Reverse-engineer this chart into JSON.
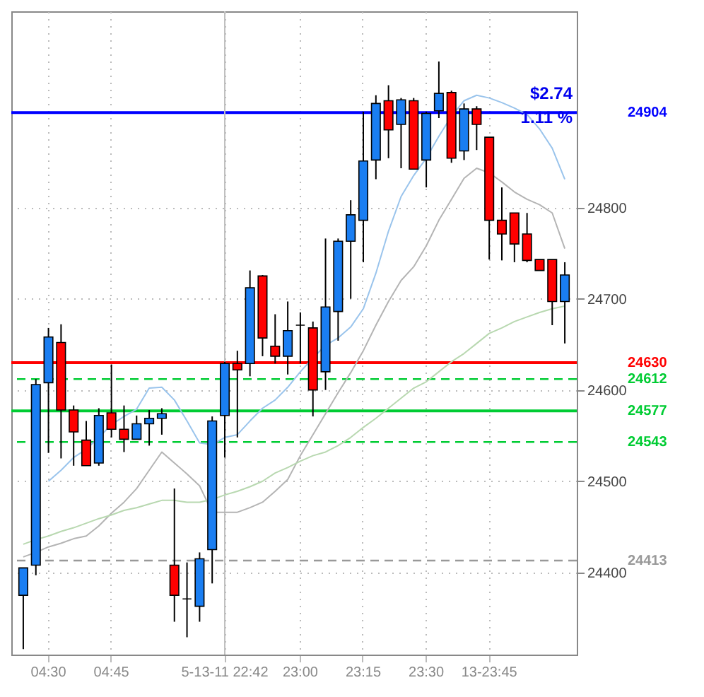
{
  "chart_data": {
    "type": "candlestick",
    "categories": [
      null,
      null,
      "04:30",
      null,
      null,
      null,
      null,
      "04:45",
      null,
      null,
      null,
      null,
      null,
      null,
      null,
      null,
      "5-13-11 22:42",
      null,
      null,
      null,
      null,
      null,
      "23:00",
      null,
      null,
      null,
      null,
      "23:15",
      null,
      null,
      null,
      null,
      "23:30",
      null,
      null,
      null,
      null,
      "13-23:45",
      null,
      null,
      null,
      null,
      null,
      null
    ],
    "ohlc": [
      [
        24375,
        24405,
        24316,
        24405
      ],
      [
        24408,
        24612,
        24397,
        24606
      ],
      [
        24608,
        24668,
        24531,
        24658
      ],
      [
        24652,
        24672,
        24525,
        24578
      ],
      [
        24578,
        24583,
        24517,
        24554
      ],
      [
        24545,
        24566,
        24517,
        24517
      ],
      [
        24520,
        24580,
        24517,
        24572
      ],
      [
        24575,
        24628,
        24548,
        24557
      ],
      [
        24557,
        24583,
        24532,
        24546
      ],
      [
        24546,
        24572,
        24546,
        24563
      ],
      [
        24563,
        24578,
        24539,
        24569
      ],
      [
        24569,
        24580,
        24551,
        24574
      ],
      [
        24408,
        24492,
        24346,
        24375
      ],
      [
        24371,
        24411,
        24329,
        24371
      ],
      [
        24363,
        24422,
        24346,
        24415
      ],
      [
        24425,
        24571,
        24388,
        24566
      ],
      [
        24572,
        24631,
        24526,
        24629
      ],
      [
        24629,
        24643,
        24548,
        24622
      ],
      [
        24629,
        24731,
        24615,
        24712
      ],
      [
        24725,
        24726,
        24637,
        24657
      ],
      [
        24648,
        24683,
        24629,
        24637
      ],
      [
        24637,
        24697,
        24617,
        24665
      ],
      [
        24671,
        24685,
        24629,
        24671
      ],
      [
        24668,
        24675,
        24571,
        24600
      ],
      [
        24620,
        24766,
        24600,
        24691
      ],
      [
        24686,
        24766,
        24654,
        24763
      ],
      [
        24763,
        24808,
        24700,
        24792
      ],
      [
        24786,
        24905,
        24740,
        24851
      ],
      [
        24852,
        24923,
        24831,
        24914
      ],
      [
        24917,
        24934,
        24854,
        24885
      ],
      [
        24891,
        24920,
        24843,
        24918
      ],
      [
        24917,
        24920,
        24842,
        24842
      ],
      [
        24852,
        24905,
        24822,
        24903
      ],
      [
        24906,
        24960,
        24898,
        24925
      ],
      [
        24926,
        24928,
        24849,
        24854
      ],
      [
        24862,
        24914,
        24852,
        24908
      ],
      [
        24908,
        24911,
        24863,
        24891
      ],
      [
        24877,
        24877,
        24743,
        24786
      ],
      [
        24786,
        24822,
        24742,
        24771
      ],
      [
        24794,
        24794,
        24740,
        24760
      ],
      [
        24771,
        24794,
        24740,
        24742
      ],
      [
        24743,
        24743,
        24731,
        24731
      ],
      [
        24743,
        24743,
        24671,
        24697
      ],
      [
        24697,
        24740,
        24651,
        24726
      ]
    ],
    "colors": [
      "#1a7ef2",
      "#1a7ef2",
      "#1a7ef2",
      "#ff0000",
      "#ff0000",
      "#ff0000",
      "#1a7ef2",
      "#ff0000",
      "#ff0000",
      "#1a7ef2",
      "#1a7ef2",
      "#1a7ef2",
      "#ff0000",
      "#000000",
      "#1a7ef2",
      "#1a7ef2",
      "#1a7ef2",
      "#ff0000",
      "#1a7ef2",
      "#ff0000",
      "#ff0000",
      "#1a7ef2",
      "#000000",
      "#ff0000",
      "#1a7ef2",
      "#1a7ef2",
      "#1a7ef2",
      "#1a7ef2",
      "#1a7ef2",
      "#ff0000",
      "#1a7ef2",
      "#ff0000",
      "#1a7ef2",
      "#1a7ef2",
      "#ff0000",
      "#1a7ef2",
      "#ff0000",
      "#ff0000",
      "#ff0000",
      "#ff0000",
      "#ff0000",
      "#ff0000",
      "#ff0000",
      "#1a7ef2"
    ],
    "series": [
      {
        "type": "line",
        "color": "#9ac4ec",
        "values": [
          null,
          null,
          24500,
          24512,
          24526,
          24535,
          24548,
          24562,
          24571,
          24579,
          24602,
          24603,
          24589,
          24566,
          24542,
          24540,
          24548,
          24551,
          24566,
          24580,
          24589,
          24603,
          24620,
          24635,
          24649,
          24657,
          24669,
          24689,
          24728,
          24774,
          24812,
          24835,
          24854,
          24878,
          24900,
          24917,
          24923,
          24920,
          24915,
          24909,
          24902,
          24886,
          24865,
          24831
        ]
      },
      {
        "type": "line",
        "color": "#b4b4b4",
        "values": [
          24417,
          24422,
          24428,
          24432,
          24437,
          24440,
          24451,
          24465,
          24477,
          24492,
          24512,
          24532,
          24520,
          24508,
          24495,
          24466,
          24466,
          24466,
          24471,
          24477,
          24489,
          24502,
          24528,
          24551,
          24574,
          24597,
          24619,
          24643,
          24671,
          24697,
          24720,
          24735,
          24758,
          24786,
          24809,
          24832,
          24843,
          24838,
          24828,
          24817,
          24809,
          24803,
          24794,
          24755
        ]
      },
      {
        "type": "line",
        "color": "#b8d8b0",
        "values": [
          24431,
          24436,
          24440,
          24445,
          24449,
          24454,
          24459,
          24463,
          24468,
          24471,
          24475,
          24479,
          24479,
          24477,
          24477,
          24480,
          24485,
          24489,
          24494,
          24500,
          24509,
          24515,
          24522,
          24528,
          24532,
          24539,
          24548,
          24559,
          24569,
          24580,
          24591,
          24602,
          24609,
          24620,
          24631,
          24640,
          24651,
          24662,
          24668,
          24675,
          24680,
          24685,
          24689,
          24692
        ]
      }
    ],
    "ylim": [
      24310,
      25015
    ],
    "yticks": [
      24400,
      24500,
      24600,
      24700,
      24800
    ],
    "grid": true,
    "line_style": "solid",
    "marker": "none",
    "ref_lines": [
      {
        "axis": "y",
        "value": 24904,
        "label": "24904",
        "color": "#0000ff",
        "line_style": "solid"
      },
      {
        "axis": "y",
        "value": 24630,
        "label": "24630",
        "color": "#ff0000",
        "line_style": "solid"
      },
      {
        "axis": "y",
        "value": 24612,
        "label": "24612",
        "color": "#00cc33",
        "line_style": "dashed"
      },
      {
        "axis": "y",
        "value": 24577,
        "label": "24577",
        "color": "#00cc33",
        "line_style": "solid"
      },
      {
        "axis": "y",
        "value": 24543,
        "label": "24543",
        "color": "#00cc33",
        "line_style": "dashed"
      },
      {
        "axis": "y",
        "value": 24413,
        "label": "24413",
        "color": "#999999",
        "line_style": "dashed"
      },
      {
        "axis": "x",
        "value": "5-13-11 22:42",
        "color": "#c0c0c0",
        "line_style": "solid"
      }
    ],
    "annotations": [
      "$2.74",
      "1.11 %"
    ]
  }
}
